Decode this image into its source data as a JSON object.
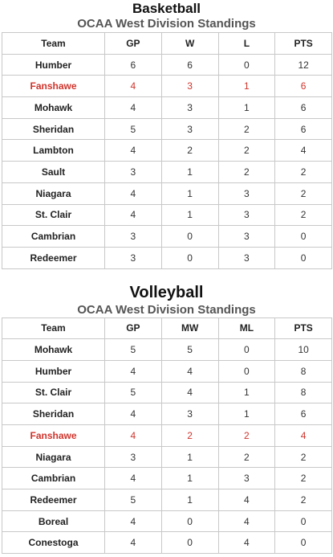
{
  "basketball": {
    "title": "Basketball",
    "subtitle": "OCAA West Division Standings",
    "headers": [
      "Team",
      "GP",
      "W",
      "L",
      "PTS"
    ],
    "highlight_color": "#d0342c",
    "rows": [
      {
        "team": "Humber",
        "gp": "6",
        "w": "6",
        "l": "0",
        "pts": "12",
        "highlight": false
      },
      {
        "team": "Fanshawe",
        "gp": "4",
        "w": "3",
        "l": "1",
        "pts": "6",
        "highlight": true
      },
      {
        "team": "Mohawk",
        "gp": "4",
        "w": "3",
        "l": "1",
        "pts": "6",
        "highlight": false
      },
      {
        "team": "Sheridan",
        "gp": "5",
        "w": "3",
        "l": "2",
        "pts": "6",
        "highlight": false
      },
      {
        "team": "Lambton",
        "gp": "4",
        "w": "2",
        "l": "2",
        "pts": "4",
        "highlight": false
      },
      {
        "team": "Sault",
        "gp": "3",
        "w": "1",
        "l": "2",
        "pts": "2",
        "highlight": false
      },
      {
        "team": "Niagara",
        "gp": "4",
        "w": "1",
        "l": "3",
        "pts": "2",
        "highlight": false
      },
      {
        "team": "St. Clair",
        "gp": "4",
        "w": "1",
        "l": "3",
        "pts": "2",
        "highlight": false
      },
      {
        "team": "Cambrian",
        "gp": "3",
        "w": "0",
        "l": "3",
        "pts": "0",
        "highlight": false
      },
      {
        "team": "Redeemer",
        "gp": "3",
        "w": "0",
        "l": "3",
        "pts": "0",
        "highlight": false
      }
    ]
  },
  "volleyball": {
    "title": "Volleyball",
    "subtitle": "OCAA West Division Standings",
    "headers": [
      "Team",
      "GP",
      "MW",
      "ML",
      "PTS"
    ],
    "highlight_color": "#d0342c",
    "rows": [
      {
        "team": "Mohawk",
        "gp": "5",
        "w": "5",
        "l": "0",
        "pts": "10",
        "highlight": false
      },
      {
        "team": "Humber",
        "gp": "4",
        "w": "4",
        "l": "0",
        "pts": "8",
        "highlight": false
      },
      {
        "team": "St. Clair",
        "gp": "5",
        "w": "4",
        "l": "1",
        "pts": "8",
        "highlight": false
      },
      {
        "team": "Sheridan",
        "gp": "4",
        "w": "3",
        "l": "1",
        "pts": "6",
        "highlight": false
      },
      {
        "team": "Fanshawe",
        "gp": "4",
        "w": "2",
        "l": "2",
        "pts": "4",
        "highlight": true
      },
      {
        "team": "Niagara",
        "gp": "3",
        "w": "1",
        "l": "2",
        "pts": "2",
        "highlight": false
      },
      {
        "team": "Cambrian",
        "gp": "4",
        "w": "1",
        "l": "3",
        "pts": "2",
        "highlight": false
      },
      {
        "team": "Redeemer",
        "gp": "5",
        "w": "1",
        "l": "4",
        "pts": "2",
        "highlight": false
      },
      {
        "team": "Boreal",
        "gp": "4",
        "w": "0",
        "l": "4",
        "pts": "0",
        "highlight": false
      },
      {
        "team": "Conestoga",
        "gp": "4",
        "w": "0",
        "l": "4",
        "pts": "0",
        "highlight": false
      }
    ]
  }
}
